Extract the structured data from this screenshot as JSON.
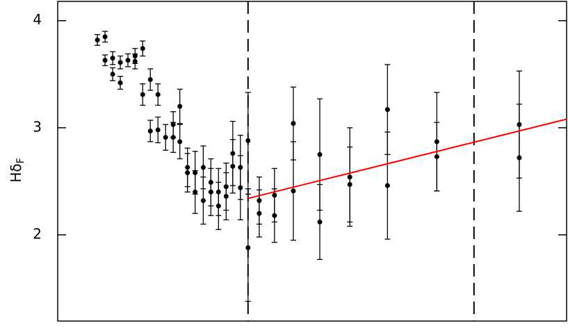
{
  "chart_data": {
    "type": "scatter",
    "ylabel": "Hδ",
    "ylabel_subscript": "F",
    "xlim": [
      0,
      10
    ],
    "ylim": [
      1.195,
      4.18
    ],
    "yticks": [
      2,
      3,
      4
    ],
    "color": "#000000",
    "x": [
      0.78,
      0.93,
      0.93,
      1.08,
      1.08,
      1.23,
      1.23,
      1.38,
      1.52,
      1.52,
      1.67,
      1.67,
      1.82,
      1.82,
      1.97,
      1.97,
      2.12,
      2.27,
      2.27,
      2.4,
      2.4,
      2.55,
      2.55,
      2.7,
      2.7,
      2.86,
      2.86,
      3.01,
      3.01,
      3.16,
      3.16,
      3.31,
      3.31,
      3.44,
      3.44,
      3.59,
      3.59,
      3.74,
      3.74,
      3.96,
      3.96,
      4.26,
      4.26,
      4.63,
      4.63,
      5.15,
      5.15,
      5.74,
      5.74,
      6.48,
      6.48,
      7.45,
      7.45,
      9.07,
      9.07
    ],
    "values": [
      3.82,
      3.85,
      3.63,
      3.65,
      3.5,
      3.61,
      3.42,
      3.63,
      3.67,
      3.62,
      3.74,
      3.31,
      3.45,
      2.97,
      3.31,
      2.98,
      2.91,
      3.03,
      2.91,
      3.2,
      2.87,
      2.63,
      2.58,
      2.58,
      2.4,
      2.63,
      2.32,
      2.49,
      2.4,
      2.4,
      2.27,
      2.45,
      2.36,
      2.76,
      2.64,
      2.63,
      2.44,
      2.88,
      1.88,
      2.32,
      2.2,
      2.37,
      2.18,
      3.04,
      2.41,
      2.75,
      2.12,
      2.54,
      2.47,
      3.17,
      2.46,
      2.87,
      2.73,
      3.03,
      2.72
    ],
    "errors": [
      0.05,
      0.05,
      0.05,
      0.06,
      0.06,
      0.06,
      0.06,
      0.06,
      0.07,
      0.07,
      0.07,
      0.1,
      0.1,
      0.1,
      0.1,
      0.12,
      0.12,
      0.12,
      0.14,
      0.16,
      0.16,
      0.18,
      0.18,
      0.2,
      0.2,
      0.2,
      0.22,
      0.22,
      0.22,
      0.22,
      0.22,
      0.22,
      0.22,
      0.3,
      0.25,
      0.3,
      0.3,
      0.45,
      0.5,
      0.22,
      0.22,
      0.25,
      0.25,
      0.34,
      0.46,
      0.52,
      0.35,
      0.46,
      0.35,
      0.42,
      0.5,
      0.46,
      0.32,
      0.5,
      0.5
    ],
    "fit": {
      "x": [
        3.74,
        10
      ],
      "values": [
        2.34,
        3.08
      ],
      "color": "#ff0000"
    },
    "vlines": [
      3.74,
      8.18
    ]
  }
}
